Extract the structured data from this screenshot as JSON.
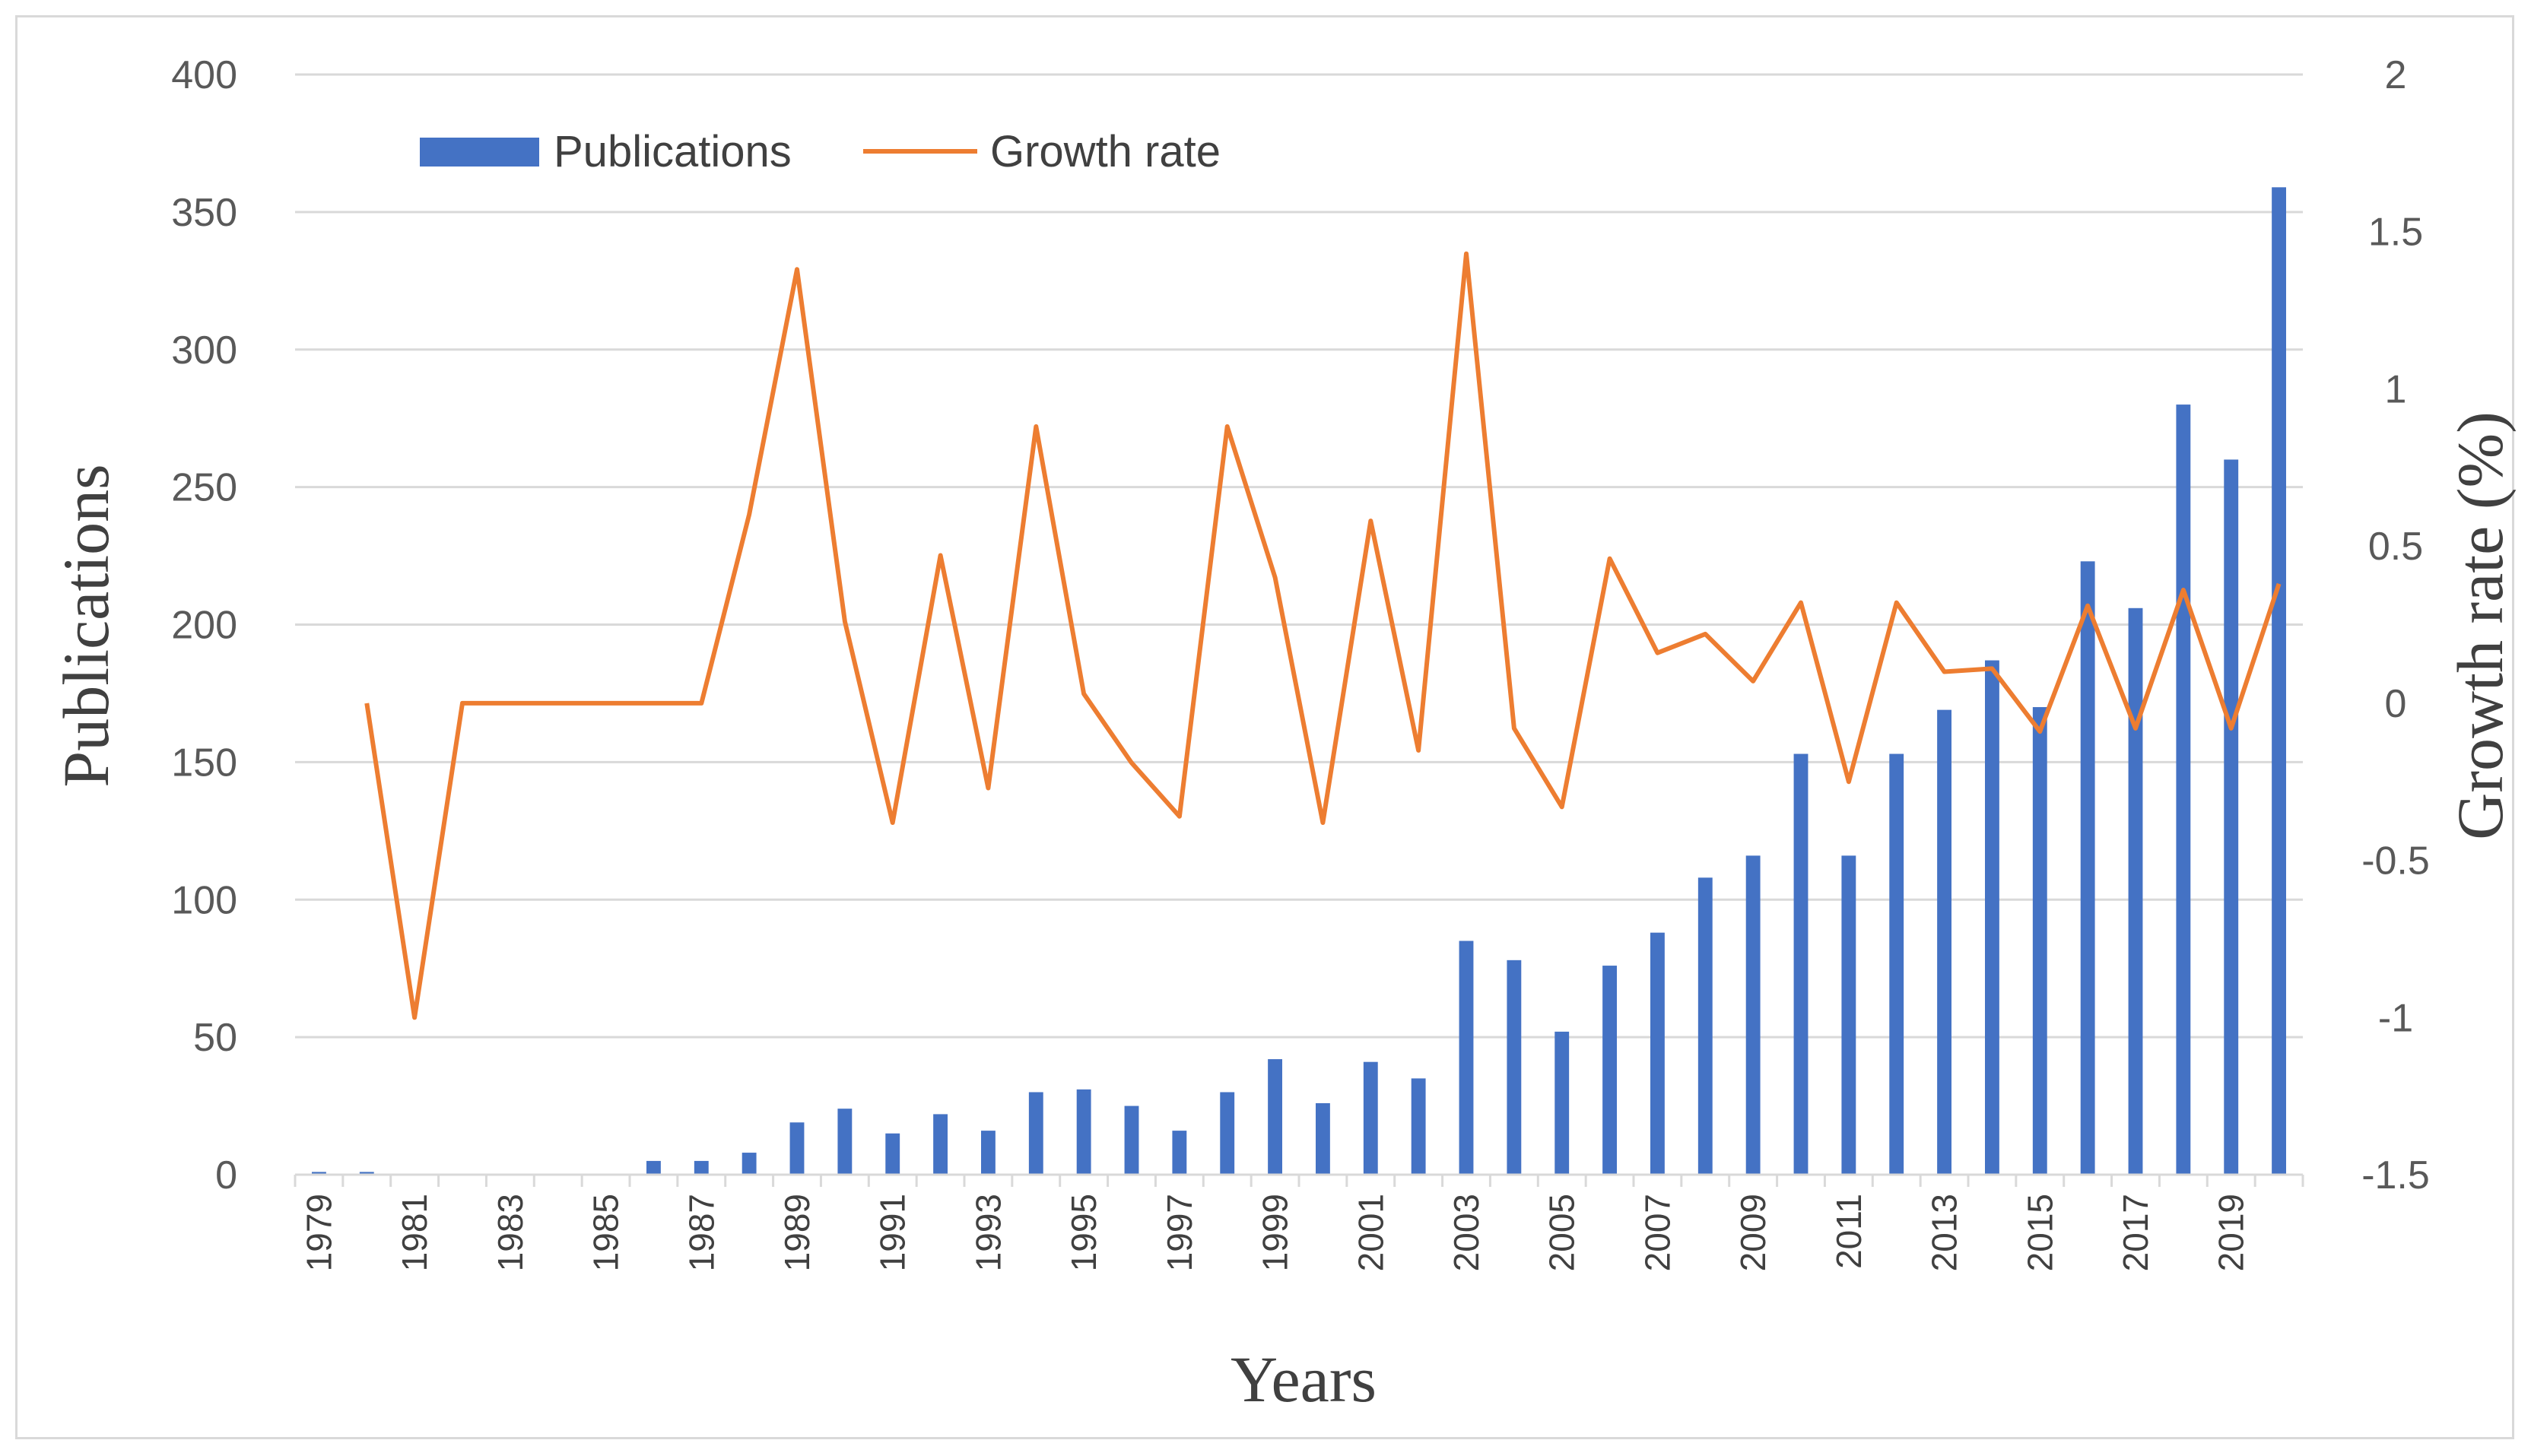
{
  "chart_data": {
    "type": "bar",
    "title": "",
    "xlabel": "Years",
    "ylabel": "Publications",
    "y2label": "Growth rate (%)",
    "ylim": [
      0,
      400
    ],
    "y2lim": [
      -1.5,
      2
    ],
    "yticks": [
      "0",
      "50",
      "100",
      "150",
      "200",
      "250",
      "300",
      "350",
      "400"
    ],
    "y2ticks": [
      "-1.5",
      "-1",
      "-0.5",
      "0",
      "0.5",
      "1",
      "1.5",
      "2"
    ],
    "legend_position": "top-left",
    "colors": {
      "bars": "#4472C4",
      "line": "#ED7D31",
      "grid": "#d9d9d9"
    },
    "categories": [
      "1979",
      "1980",
      "1981",
      "1982",
      "1983",
      "1984",
      "1985",
      "1986",
      "1987",
      "1988",
      "1989",
      "1990",
      "1991",
      "1992",
      "1993",
      "1994",
      "1995",
      "1996",
      "1997",
      "1998",
      "1999",
      "2000",
      "2001",
      "2002",
      "2003",
      "2004",
      "2005",
      "2006",
      "2007",
      "2008",
      "2009",
      "2010",
      "2011",
      "2012",
      "2013",
      "2014",
      "2015",
      "2016",
      "2017",
      "2018",
      "2019",
      "2020"
    ],
    "x_tick_labels": [
      "1979",
      "1981",
      "1983",
      "1985",
      "1987",
      "1989",
      "1991",
      "1993",
      "1995",
      "1997",
      "1999",
      "2001",
      "2003",
      "2005",
      "2007",
      "2009",
      "2011",
      "2013",
      "2015",
      "2017",
      "2019"
    ],
    "series": [
      {
        "name": "Publications",
        "type": "bar",
        "axis": "left",
        "values": [
          1,
          1,
          0,
          0,
          0,
          0,
          0,
          5,
          5,
          8,
          19,
          24,
          15,
          22,
          16,
          30,
          31,
          25,
          16,
          30,
          42,
          26,
          41,
          35,
          85,
          78,
          52,
          76,
          88,
          108,
          116,
          153,
          116,
          153,
          169,
          187,
          170,
          223,
          206,
          280,
          260,
          359
        ]
      },
      {
        "name": "Growth rate",
        "type": "line",
        "axis": "right",
        "values": [
          null,
          0,
          -1,
          0,
          0,
          0,
          0,
          0,
          0,
          0.6,
          1.38,
          0.26,
          -0.38,
          0.47,
          -0.27,
          0.88,
          0.03,
          -0.19,
          -0.36,
          0.88,
          0.4,
          -0.38,
          0.58,
          -0.15,
          1.43,
          -0.08,
          -0.33,
          0.46,
          0.16,
          0.22,
          0.07,
          0.32,
          -0.25,
          0.32,
          0.1,
          0.11,
          -0.09,
          0.31,
          -0.08,
          0.36,
          -0.08,
          0.38
        ]
      }
    ]
  }
}
